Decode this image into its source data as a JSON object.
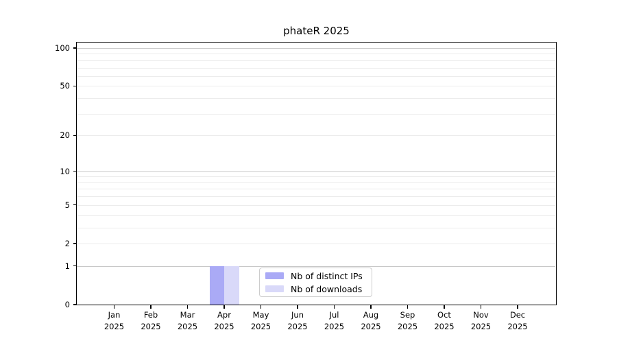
{
  "chart_data": {
    "type": "bar",
    "title": "phateR 2025",
    "categories": [
      "Jan",
      "Feb",
      "Mar",
      "Apr",
      "May",
      "Jun",
      "Jul",
      "Aug",
      "Sep",
      "Oct",
      "Nov",
      "Dec"
    ],
    "category_year": "2025",
    "series": [
      {
        "name": "Nb of distinct IPs",
        "color": "#aaaaf6",
        "values": [
          0,
          0,
          0,
          1,
          0,
          0,
          0,
          0,
          0,
          0,
          0,
          0
        ]
      },
      {
        "name": "Nb of downloads",
        "color": "#d9d9f9",
        "values": [
          0,
          0,
          0,
          1,
          0,
          0,
          0,
          0,
          0,
          0,
          0,
          0
        ]
      }
    ],
    "xlabel": "",
    "ylabel": "",
    "yaxis": {
      "scale": "log1p",
      "tick_labels": [
        0,
        1,
        2,
        5,
        10,
        20,
        50,
        100
      ],
      "range": [
        0,
        110
      ],
      "gridlines_major": [
        1,
        10,
        100
      ],
      "gridlines_minor": [
        2,
        3,
        4,
        5,
        6,
        7,
        8,
        9,
        20,
        30,
        40,
        50,
        60,
        70,
        80,
        90
      ]
    },
    "legend": {
      "position": "bottom-center-inside",
      "entries": [
        "Nb of distinct IPs",
        "Nb of downloads"
      ]
    },
    "grid": true,
    "colors": {
      "background": "#ffffff",
      "grid_major": "#c8c8c8",
      "grid_minor": "#ececec",
      "axis": "#000000",
      "legend_border": "#cccccc",
      "text": "#000000"
    }
  }
}
